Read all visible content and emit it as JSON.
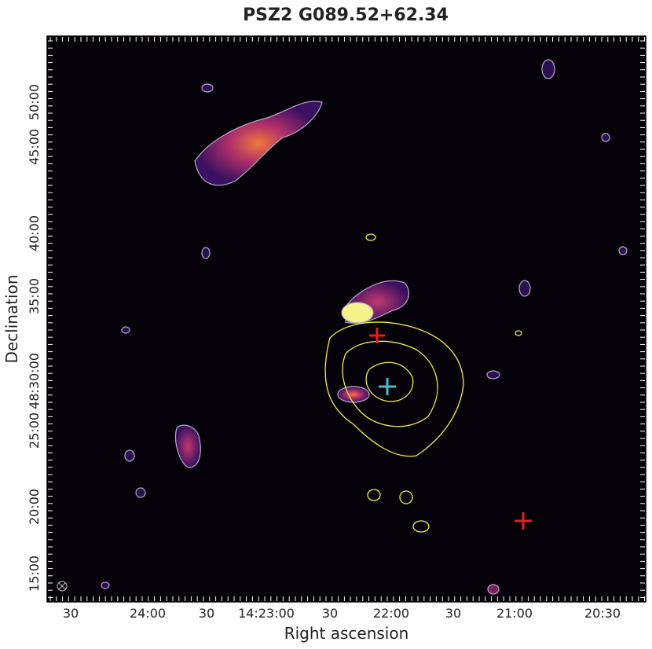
{
  "figure": {
    "title": "PSZ2 G089.52+62.34",
    "xlabel": "Right ascension",
    "ylabel": "Declination",
    "xtick_labels": [
      "30",
      "24:00",
      "30",
      "14:23:00",
      "30",
      "22:00",
      "30",
      "21:00",
      "20:30"
    ],
    "ytick_labels": [
      "50:00",
      "45:00",
      "40:00",
      "35:00",
      "48:30:00",
      "25:00",
      "20:00",
      "15:00"
    ]
  }
}
